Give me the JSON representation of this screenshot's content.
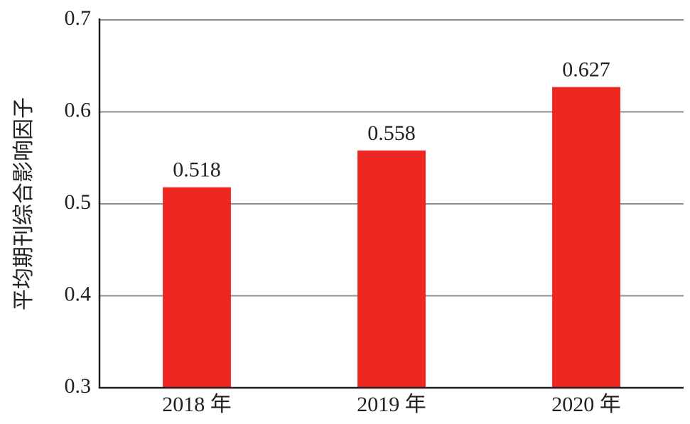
{
  "chart_data": {
    "type": "bar",
    "y_label": "平均期刊综合影响因子",
    "categories": [
      "2018 年",
      "2019 年",
      "2020 年"
    ],
    "values": [
      0.518,
      0.558,
      0.627
    ],
    "color": "#ee2722",
    "ylim": [
      0.3,
      0.7
    ],
    "yticks": [
      0.3,
      0.4,
      0.5,
      0.6,
      0.7
    ],
    "grid": true
  }
}
